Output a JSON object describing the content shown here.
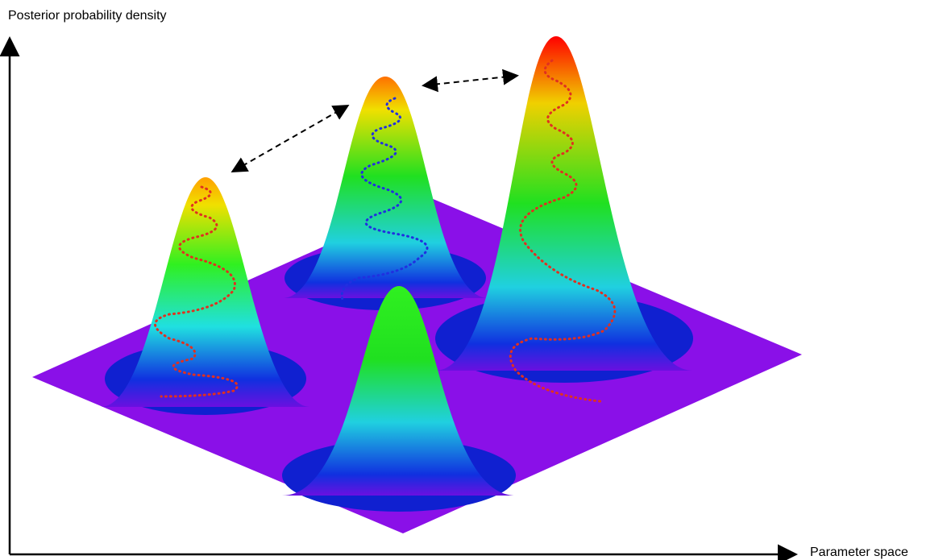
{
  "y_axis_label": "Posterior probability density",
  "x_axis_label": "Parameter space"
}
